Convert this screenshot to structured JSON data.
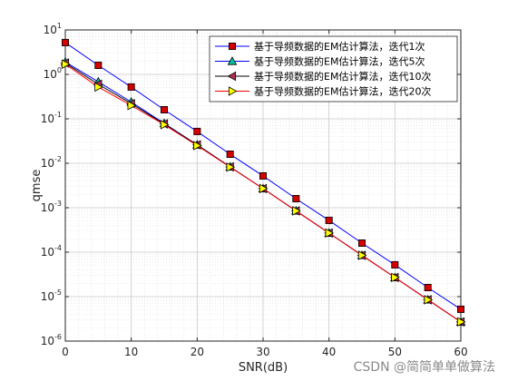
{
  "chart_data": {
    "type": "line",
    "xlabel": "SNR(dB)",
    "ylabel": "qmse",
    "xlim": [
      0,
      60
    ],
    "ylim": [
      1e-06,
      10
    ],
    "yscale": "log",
    "grid": true,
    "legend_position": "top-right",
    "x_ticks": [
      "0",
      "10",
      "20",
      "30",
      "40",
      "50",
      "60"
    ],
    "y_ticks": [
      {
        "base": "10",
        "exp": "1",
        "value": 10
      },
      {
        "base": "10",
        "exp": "0",
        "value": 1
      },
      {
        "base": "10",
        "exp": "-1",
        "value": 0.1
      },
      {
        "base": "10",
        "exp": "-2",
        "value": 0.01
      },
      {
        "base": "10",
        "exp": "-3",
        "value": 0.001
      },
      {
        "base": "10",
        "exp": "-4",
        "value": 0.0001
      },
      {
        "base": "10",
        "exp": "-5",
        "value": 1e-05
      },
      {
        "base": "10",
        "exp": "-6",
        "value": 1e-06
      }
    ],
    "x": [
      0,
      5,
      10,
      15,
      20,
      25,
      30,
      35,
      40,
      45,
      50,
      55,
      60
    ],
    "series": [
      {
        "name": "基于导频数据的EM估计算法，迭代1次",
        "line_color": "#0000ff",
        "marker": "square",
        "marker_color": "#d40000",
        "values": [
          5.2,
          1.6,
          0.52,
          0.16,
          0.052,
          0.016,
          0.0052,
          0.0016,
          0.00052,
          0.00016,
          5.2e-05,
          1.6e-05,
          5.2e-06
        ]
      },
      {
        "name": "基于导频数据的EM估计算法，迭代5次",
        "line_color": "#0000ff",
        "marker": "triangle-up",
        "marker_color": "#00c0a0",
        "values": [
          1.9,
          0.68,
          0.24,
          0.079,
          0.026,
          0.0083,
          0.0027,
          0.00085,
          0.00027,
          8.5e-05,
          2.7e-05,
          8.5e-06,
          2.7e-06
        ]
      },
      {
        "name": "基于导频数据的EM估计算法，迭代10次",
        "line_color": "#000000",
        "marker": "triangle-left",
        "marker_color": "#b03050",
        "values": [
          1.8,
          0.6,
          0.22,
          0.077,
          0.026,
          0.0083,
          0.0027,
          0.00085,
          0.00027,
          8.5e-05,
          2.7e-05,
          8.5e-06,
          2.7e-06
        ]
      },
      {
        "name": "基于导频数据的EM估计算法，迭代20次",
        "line_color": "#ff0000",
        "marker": "triangle-right",
        "marker_color": "#ffff00",
        "values": [
          1.7,
          0.52,
          0.2,
          0.074,
          0.025,
          0.0082,
          0.0027,
          0.00085,
          0.00027,
          8.5e-05,
          2.7e-05,
          8.5e-06,
          2.7e-06
        ]
      }
    ]
  },
  "watermark": "CSDN @简简单单做算法"
}
